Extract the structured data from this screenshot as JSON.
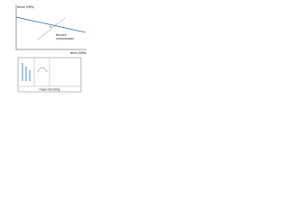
{
  "header": {
    "y_label": "σmax (MPa)",
    "x_label": "σmin (MPa)"
  },
  "annotations": {
    "upper": "tension",
    "lower": "compression"
  },
  "inset": {
    "caption": "mean bending"
  }
}
